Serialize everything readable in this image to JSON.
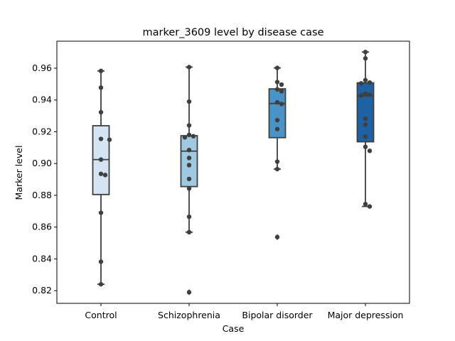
{
  "chart_data": {
    "type": "box",
    "title": "marker_3609 level by disease case",
    "xlabel": "Case",
    "ylabel": "Marker level",
    "ylim": [
      0.812,
      0.977
    ],
    "yticks": [
      "0.82",
      "0.84",
      "0.86",
      "0.88",
      "0.90",
      "0.92",
      "0.94",
      "0.96"
    ],
    "grid": false,
    "categories": [
      "Control",
      "Schizophrenia",
      "Bipolar disorder",
      "Major depression"
    ],
    "colors": [
      "#d4e4f3",
      "#9fc9e1",
      "#4a93c6",
      "#1e62a5"
    ],
    "boxes": [
      {
        "q1": 0.8805,
        "median": 0.9025,
        "q3": 0.9238,
        "whisker_low": 0.824,
        "whisker_high": 0.9583,
        "outliers": []
      },
      {
        "q1": 0.8855,
        "median": 0.9078,
        "q3": 0.9175,
        "whisker_low": 0.8568,
        "whisker_high": 0.9607,
        "outliers": [
          0.819
        ]
      },
      {
        "q1": 0.9163,
        "median": 0.9378,
        "q3": 0.947,
        "whisker_low": 0.8965,
        "whisker_high": 0.9602,
        "outliers": [
          0.8537
        ]
      },
      {
        "q1": 0.9137,
        "median": 0.9425,
        "q3": 0.9508,
        "whisker_low": 0.873,
        "whisker_high": 0.9702,
        "outliers": []
      }
    ],
    "points": [
      [
        0.9583,
        0.9478,
        0.9323,
        0.9155,
        0.915,
        0.9025,
        0.8935,
        0.8928,
        0.869,
        0.8382,
        0.824
      ],
      [
        0.9607,
        0.939,
        0.924,
        0.918,
        0.9172,
        0.9165,
        0.9085,
        0.9035,
        0.899,
        0.8903,
        0.8843,
        0.8665,
        0.8568,
        0.819
      ],
      [
        0.9602,
        0.9513,
        0.9497,
        0.9467,
        0.9455,
        0.9385,
        0.9375,
        0.9273,
        0.9217,
        0.9012,
        0.8965,
        0.8537
      ],
      [
        0.9702,
        0.9662,
        0.9525,
        0.951,
        0.9505,
        0.944,
        0.9433,
        0.9428,
        0.9282,
        0.9245,
        0.917,
        0.9105,
        0.908,
        0.8745,
        0.873
      ]
    ]
  }
}
